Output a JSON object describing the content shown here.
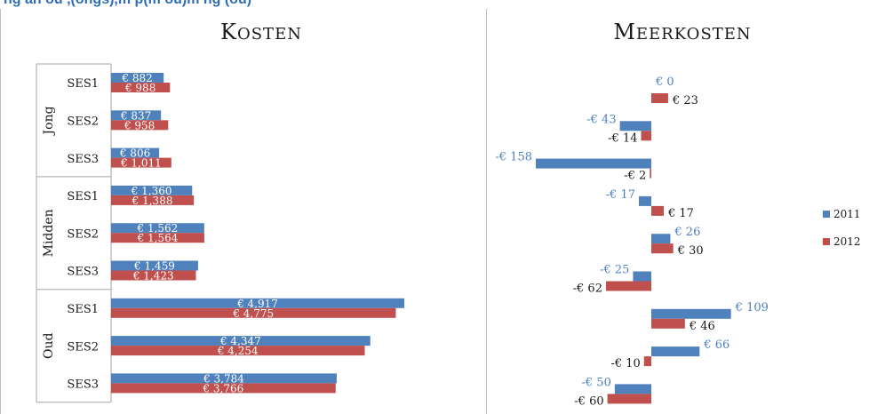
{
  "header_fragment": "ng an ou ,(ongs),m p(m ou)m ng (ou)",
  "chart_data": [
    {
      "type": "bar",
      "orientation": "horizontal",
      "title": "Kosten",
      "groups": [
        {
          "label": "Jong",
          "categories": [
            "SES1",
            "SES2",
            "SES3"
          ]
        },
        {
          "label": "Midden",
          "categories": [
            "SES1",
            "SES2",
            "SES3"
          ]
        },
        {
          "label": "Oud",
          "categories": [
            "SES1",
            "SES2",
            "SES3"
          ]
        }
      ],
      "series": [
        {
          "name": "2011",
          "color": "#4f81bd",
          "values": [
            882,
            837,
            806,
            1360,
            1562,
            1459,
            4917,
            4347,
            3784
          ],
          "labels": [
            "€ 882",
            "€ 837",
            "€ 806",
            "€ 1,360",
            "€ 1,562",
            "€ 1,459",
            "€ 4,917",
            "€ 4,347",
            "€ 3,784"
          ]
        },
        {
          "name": "2012",
          "color": "#c0504d",
          "values": [
            988,
            958,
            1011,
            1388,
            1564,
            1423,
            4775,
            4254,
            3766
          ],
          "labels": [
            "€ 988",
            "€ 958",
            "€ 1,011",
            "€ 1,388",
            "€ 1,564",
            "€ 1,423",
            "€ 4,775",
            "€ 4,254",
            "€ 3,766"
          ]
        }
      ],
      "xlim": [
        0,
        5000
      ],
      "grid": false,
      "legend": "none"
    },
    {
      "type": "bar",
      "orientation": "horizontal",
      "title": "Meerkosten",
      "series": [
        {
          "name": "2011",
          "color": "#4f81bd",
          "values": [
            0,
            -43,
            -158,
            -17,
            26,
            -25,
            109,
            66,
            -50
          ],
          "labels": [
            "€ 0",
            "-€ 43",
            "-€ 158",
            "-€ 17",
            "€ 26",
            "-€ 25",
            "€ 109",
            "€ 66",
            "-€ 50"
          ]
        },
        {
          "name": "2012",
          "color": "#c0504d",
          "values": [
            23,
            -14,
            -2,
            17,
            30,
            -62,
            46,
            -10,
            -60
          ],
          "labels": [
            "€ 23",
            "-€ 14",
            "-€ 2",
            "€ 17",
            "€ 30",
            "-€ 62",
            "€ 46",
            "-€ 10",
            "-€ 60"
          ]
        }
      ],
      "xlim": [
        -160,
        110
      ],
      "grid": false,
      "legend": "right",
      "legend_entries": [
        "2011",
        "2012"
      ]
    }
  ]
}
